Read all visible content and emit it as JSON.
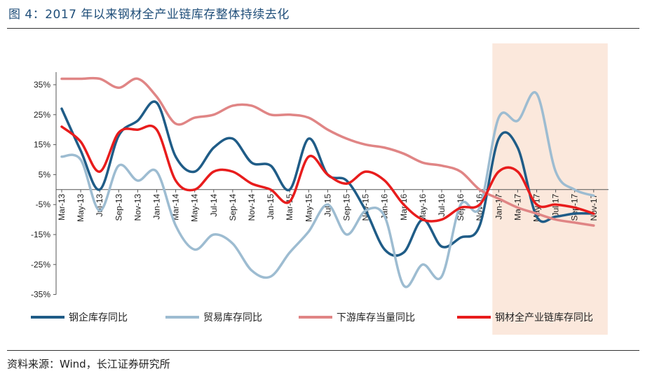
{
  "figure": {
    "title": "图 4：2017 年以来钢材全产业链库存整体持续去化",
    "source": "资料来源：Wind，长江证券研究所"
  },
  "chart_data": {
    "type": "line",
    "x": [
      "Mar-13",
      "May-13",
      "Jul-13",
      "Sep-13",
      "Nov-13",
      "Jan-14",
      "Mar-14",
      "May-14",
      "Jul-14",
      "Sep-14",
      "Nov-14",
      "Jan-15",
      "Mar-15",
      "May-15",
      "Jul-15",
      "Sep-15",
      "Nov-15",
      "Jan-16",
      "Mar-16",
      "May-16",
      "Jul-16",
      "Sep-16",
      "Nov-16",
      "Jan-17",
      "Mar-17",
      "May-17",
      "Jul-17",
      "Sep-17",
      "Nov-17"
    ],
    "ylim": [
      -35,
      40
    ],
    "yticks": [
      35,
      25,
      15,
      5,
      -5,
      -15,
      -25,
      -35
    ],
    "ytick_labels": [
      "35%",
      "25%",
      "15%",
      "5%",
      "-5%",
      "-15%",
      "-25%",
      "-35%"
    ],
    "highlight": {
      "from": "Jan-17",
      "to": "Nov-17",
      "color": "#fbe8dc"
    },
    "series": [
      {
        "name": "钢企库存同比",
        "color": "#1f5c87",
        "values": [
          27,
          13,
          0,
          18,
          23,
          29,
          11,
          6,
          14,
          17,
          9,
          8,
          0,
          17,
          5,
          3,
          -7,
          -20,
          -21,
          -10,
          -19,
          -16,
          -12,
          17,
          14,
          -9,
          -9,
          -8,
          -8
        ]
      },
      {
        "name": "贸易库存同比",
        "color": "#9dbcd1",
        "values": [
          11,
          10,
          -7,
          8,
          3,
          6,
          -12,
          -20,
          -15,
          -18,
          -27,
          -29,
          -21,
          -14,
          -5,
          -15,
          -7,
          -9,
          -32,
          -25,
          -29,
          -5,
          -6,
          24,
          23,
          32,
          6,
          0,
          -2
        ]
      },
      {
        "name": "下游库存当量同比",
        "color": "#e08585",
        "values": [
          37,
          37,
          37,
          34,
          37,
          31,
          22,
          24,
          25,
          28,
          28,
          25,
          25,
          24,
          20,
          17,
          15,
          14,
          12,
          9,
          8,
          6,
          0,
          -3,
          -6,
          -8,
          -10,
          -11,
          -12
        ]
      },
      {
        "name": "钢材全产业链库存同比",
        "color": "#e81c1c",
        "values": [
          21,
          16,
          6,
          19,
          20,
          20,
          3,
          0,
          6,
          6,
          2,
          0,
          -4,
          11,
          5,
          2,
          6,
          3,
          -5,
          -10,
          -10,
          -6,
          -5,
          6,
          6,
          -5,
          -5,
          -6,
          -8
        ]
      }
    ]
  }
}
